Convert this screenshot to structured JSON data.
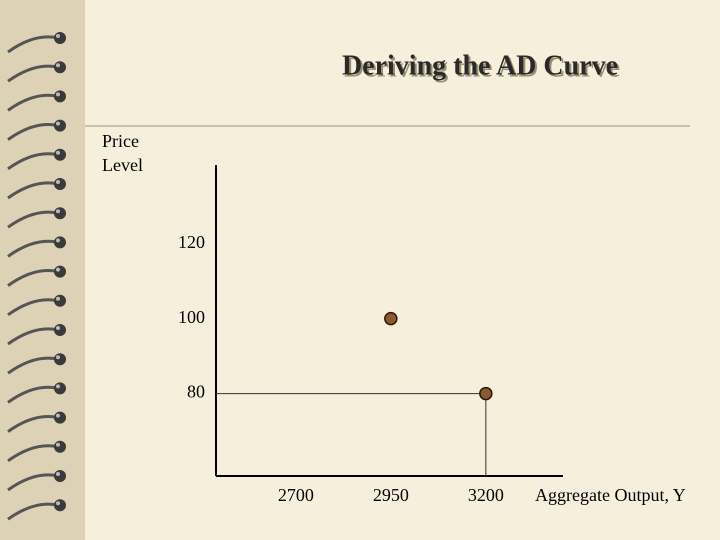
{
  "chart_data": {
    "type": "scatter",
    "title": "Deriving the AD Curve",
    "y_label": [
      "Price",
      "Level"
    ],
    "x_label": "Aggregate Output, Y",
    "series": [
      {
        "color": "#8c5a2c",
        "x": [
          2950,
          3200
        ],
        "values": [
          100,
          80
        ],
        "guides": [
          false,
          true
        ]
      }
    ],
    "xlim": [
      2490,
      3403
    ],
    "ylim": [
      58,
      141
    ],
    "xticks": [
      2700,
      2950,
      3200
    ],
    "yticks": [
      80,
      100,
      120
    ]
  }
}
